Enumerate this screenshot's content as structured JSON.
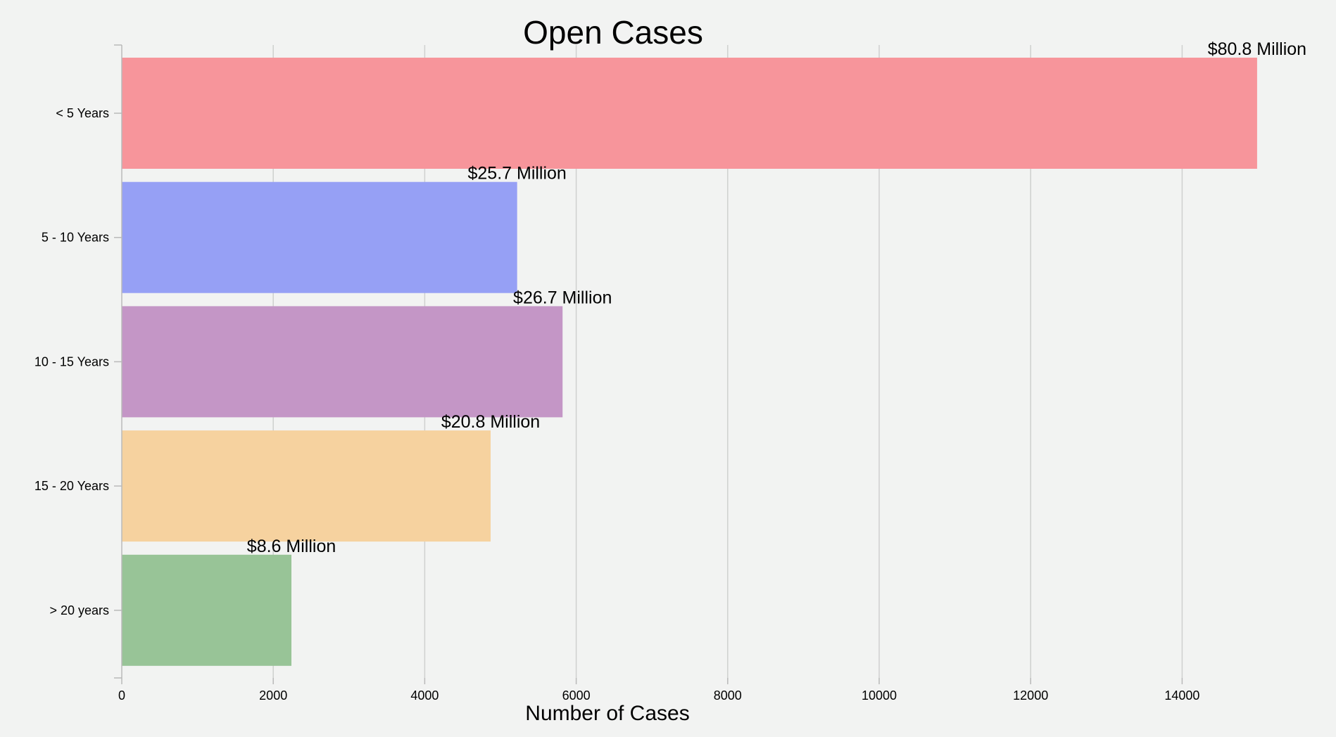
{
  "chart_data": {
    "type": "bar",
    "orientation": "horizontal",
    "title": "Open Cases",
    "xlabel": "Number of Cases",
    "ylabel": "",
    "categories": [
      "< 5 Years",
      "5 - 10 Years",
      "10 - 15 Years",
      "15 - 20 Years",
      "> 20 years"
    ],
    "values": [
      14990,
      5220,
      5820,
      4870,
      2240
    ],
    "data_labels": [
      "$80.8 Million",
      "$25.7 Million",
      "$26.7 Million",
      "$20.8 Million",
      "$8.6 Million"
    ],
    "colors": [
      "#f7959b",
      "#96a0f5",
      "#c496c6",
      "#f6d29f",
      "#98c497"
    ],
    "xlim": [
      0,
      15000
    ],
    "x_ticks": [
      0,
      2000,
      4000,
      6000,
      8000,
      10000,
      12000,
      14000
    ],
    "grid": "vertical"
  }
}
